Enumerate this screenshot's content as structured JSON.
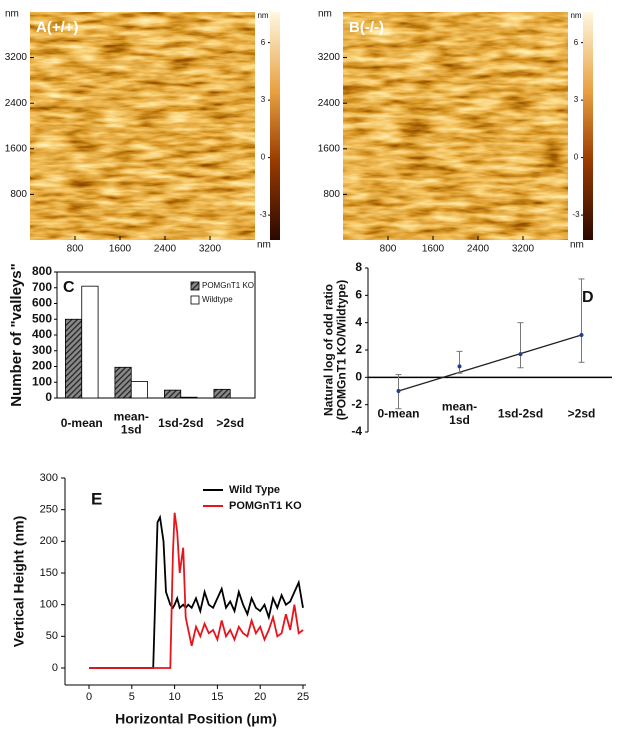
{
  "chart_data": [
    {
      "type": "image",
      "label": "A(+/+)",
      "xlim": [
        0,
        4000
      ],
      "xticks": [
        800,
        1600,
        2400,
        3200
      ],
      "ylim": [
        0,
        4000
      ],
      "yticks": [
        800,
        1600,
        2400,
        3200
      ],
      "x_unit": "nm",
      "y_unit": "nm",
      "colorbar": {
        "label": "nm",
        "lim": [
          -4.3,
          7.6
        ],
        "ticks": [
          6,
          3,
          0,
          -3
        ]
      }
    },
    {
      "type": "image",
      "label": "B(-/-)",
      "xlim": [
        0,
        4000
      ],
      "xticks": [
        800,
        1600,
        2400,
        3200
      ],
      "ylim": [
        0,
        4000
      ],
      "yticks": [
        800,
        1600,
        2400,
        3200
      ],
      "x_unit": "nm",
      "y_unit": "nm",
      "colorbar": {
        "label": "nm",
        "lim": [
          -4.3,
          7.6
        ],
        "ticks": [
          6,
          3,
          0,
          -3
        ]
      }
    },
    {
      "type": "bar",
      "label": "C",
      "categories": [
        "0-mean",
        "mean-\n1sd",
        "1sd-2sd",
        ">2sd"
      ],
      "ylabel": "Number of \"valleys\"",
      "ylim": [
        0,
        800
      ],
      "yticks": [
        0,
        100,
        200,
        300,
        400,
        500,
        600,
        700,
        800
      ],
      "legend": "upper right",
      "series": [
        {
          "name": "POMGnT1 KO",
          "color": "#333333",
          "hatch": true,
          "values": [
            500,
            195,
            50,
            55
          ]
        },
        {
          "name": "Wildtype",
          "color": "#ffffff",
          "hatch": false,
          "values": [
            710,
            105,
            5,
            0
          ]
        }
      ]
    },
    {
      "type": "errorpoint",
      "label": "D",
      "categories": [
        "0-mean",
        "mean-\n1sd",
        "1sd-2sd",
        ">2sd"
      ],
      "ylabel": "Natural log of odd ratio\n(POMGnT1 KO/Wildtype)",
      "ylim": [
        -4,
        8
      ],
      "yticks": [
        -4,
        -2,
        0,
        2,
        4,
        6,
        8
      ],
      "color": "#1f3f8f",
      "trend_line": true,
      "values": [
        -1,
        0.8,
        1.7,
        3.1
      ],
      "lower": [
        -2.3,
        0.3,
        0.7,
        1.1
      ],
      "upper": [
        0.2,
        1.9,
        4,
        7.2
      ]
    },
    {
      "type": "line",
      "label": "E",
      "xlabel": "Horizontal Position (μm)",
      "ylabel": "Vertical Height (nm)",
      "legend": "upper right",
      "xlim": [
        0,
        25
      ],
      "xticks": [
        0,
        5,
        10,
        15,
        20,
        25
      ],
      "ylim": [
        0,
        300
      ],
      "yticks": [
        0,
        50,
        100,
        150,
        200,
        250,
        300
      ],
      "x": [
        0,
        1,
        2,
        3,
        4,
        5,
        6,
        7,
        7.5,
        8,
        8.3,
        8.7,
        9,
        9.5,
        9.8,
        10,
        10.3,
        10.6,
        11,
        11.3,
        11.6,
        12,
        12.5,
        13,
        13.5,
        14,
        14.5,
        15,
        15.5,
        16,
        16.5,
        17,
        17.5,
        18,
        18.5,
        19,
        19.5,
        20,
        20.5,
        21,
        21.5,
        22,
        22.5,
        23,
        23.5,
        24,
        24.5,
        25
      ],
      "series": [
        {
          "name": "Wild Type",
          "color": "#000000",
          "values": [
            0,
            0,
            0,
            0,
            0,
            0,
            0,
            0,
            0,
            230,
            238,
            200,
            120,
            100,
            95,
            100,
            110,
            95,
            100,
            95,
            100,
            95,
            110,
            90,
            120,
            100,
            95,
            110,
            125,
            95,
            105,
            90,
            120,
            100,
            85,
            110,
            95,
            90,
            100,
            80,
            110,
            95,
            115,
            100,
            105,
            120,
            135,
            95
          ]
        },
        {
          "name": "POMGnT1 KO",
          "color": "#e8141c",
          "values": [
            0,
            0,
            0,
            0,
            0,
            0,
            0,
            0,
            0,
            0,
            0,
            0,
            0,
            0,
            180,
            245,
            215,
            150,
            190,
            80,
            60,
            35,
            65,
            50,
            70,
            55,
            60,
            45,
            75,
            50,
            60,
            45,
            65,
            55,
            50,
            75,
            55,
            65,
            45,
            60,
            80,
            50,
            55,
            85,
            60,
            100,
            55,
            60
          ]
        }
      ]
    }
  ]
}
